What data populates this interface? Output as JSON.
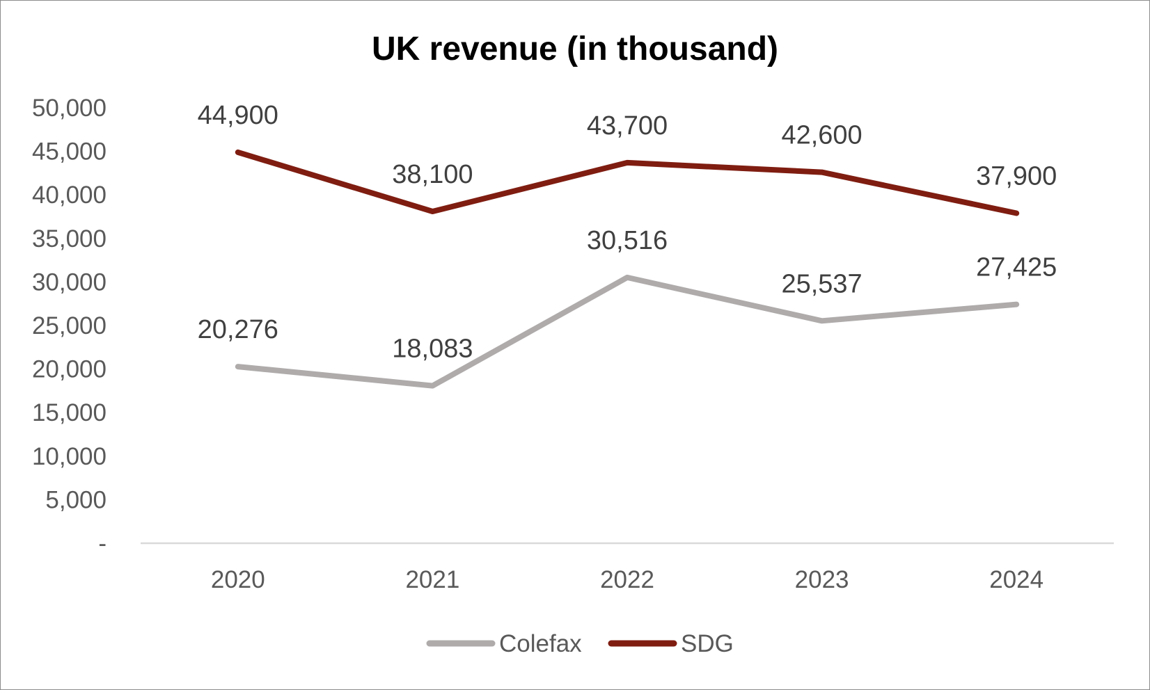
{
  "chart_data": {
    "type": "line",
    "title": "UK revenue (in thousand)",
    "xlabel": "",
    "ylabel": "",
    "categories": [
      "2020",
      "2021",
      "2022",
      "2023",
      "2024"
    ],
    "ylim": [
      0,
      50000
    ],
    "yticks": [
      0,
      5000,
      10000,
      15000,
      20000,
      25000,
      30000,
      35000,
      40000,
      45000,
      50000
    ],
    "ytick_labels": [
      "-",
      "5,000",
      "10,000",
      "15,000",
      "20,000",
      "25,000",
      "30,000",
      "35,000",
      "40,000",
      "45,000",
      "50,000"
    ],
    "grid": false,
    "legend_position": "bottom",
    "series": [
      {
        "name": "Colefax",
        "color": "#afabab",
        "values": [
          20276,
          18083,
          30516,
          25537,
          27425
        ],
        "labels": [
          "20,276",
          "18,083",
          "30,516",
          "25,537",
          "27,425"
        ]
      },
      {
        "name": "SDG",
        "color": "#7f1d11",
        "values": [
          44900,
          38100,
          43700,
          42600,
          37900
        ],
        "labels": [
          "44,900",
          "38,100",
          "43,700",
          "42,600",
          "37,900"
        ]
      }
    ]
  }
}
